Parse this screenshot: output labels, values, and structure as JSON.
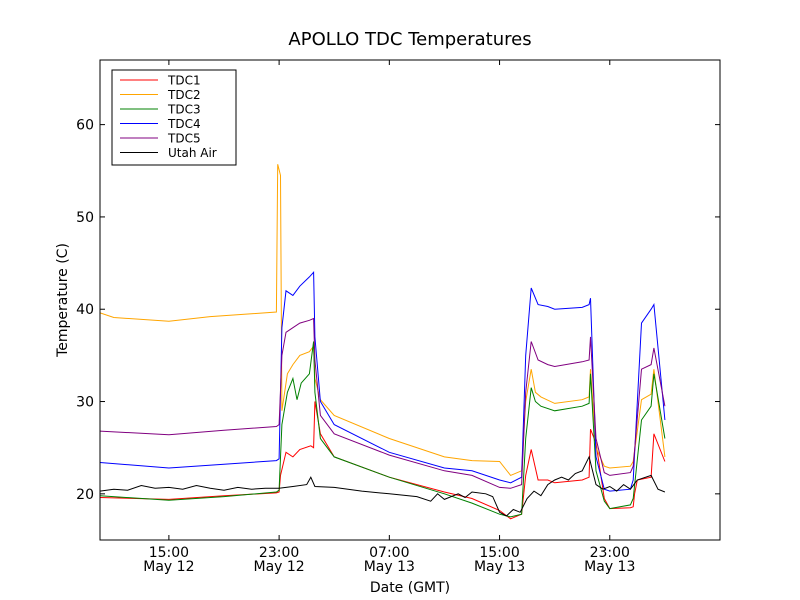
{
  "chart_data": {
    "type": "line",
    "title": "APOLLO TDC Temperatures",
    "xlabel": "Date (GMT)",
    "ylabel": "Temperature (C)",
    "xlim": [
      -5,
      40
    ],
    "ylim": [
      15,
      67
    ],
    "x_unit": "hours since May 12 15:00 GMT",
    "xticks": [
      {
        "x": 0,
        "time": "15:00",
        "date": "May 12"
      },
      {
        "x": 8,
        "time": "23:00",
        "date": "May 12"
      },
      {
        "x": 16,
        "time": "07:00",
        "date": "May 13"
      },
      {
        "x": 24,
        "time": "15:00",
        "date": "May 13"
      },
      {
        "x": 32,
        "time": "23:00",
        "date": "May 13"
      }
    ],
    "yticks": [
      20,
      30,
      40,
      50,
      60
    ],
    "grid": false,
    "legend_position": "top-left",
    "series": [
      {
        "name": "TDC1",
        "color": "#ff0000",
        "points": [
          [
            -5,
            19.6
          ],
          [
            0,
            19.4
          ],
          [
            4,
            19.8
          ],
          [
            7.8,
            20.1
          ],
          [
            8.0,
            20.2
          ],
          [
            8.1,
            22.0
          ],
          [
            8.5,
            24.5
          ],
          [
            9.0,
            24.0
          ],
          [
            9.5,
            24.8
          ],
          [
            10.3,
            25.2
          ],
          [
            10.5,
            25.0
          ],
          [
            10.6,
            30.0
          ],
          [
            11.0,
            26.5
          ],
          [
            12,
            24.0
          ],
          [
            16,
            21.8
          ],
          [
            20,
            20.2
          ],
          [
            22,
            19.5
          ],
          [
            24,
            18.2
          ],
          [
            24.8,
            17.3
          ],
          [
            25.6,
            17.8
          ],
          [
            25.9,
            22.0
          ],
          [
            26.3,
            24.8
          ],
          [
            26.8,
            21.5
          ],
          [
            27.5,
            21.5
          ],
          [
            28,
            21.2
          ],
          [
            30,
            21.5
          ],
          [
            30.5,
            21.8
          ],
          [
            30.6,
            27.0
          ],
          [
            31,
            25.5
          ],
          [
            31.6,
            19.5
          ],
          [
            32,
            18.4
          ],
          [
            33.5,
            18.5
          ],
          [
            33.7,
            18.6
          ],
          [
            33.8,
            20.0
          ],
          [
            34,
            21.5
          ],
          [
            35,
            21.8
          ],
          [
            35.2,
            26.5
          ],
          [
            36,
            23.5
          ]
        ]
      },
      {
        "name": "TDC2",
        "color": "#ffa500",
        "points": [
          [
            -5,
            39.6
          ],
          [
            -4,
            39.1
          ],
          [
            0,
            38.7
          ],
          [
            3,
            39.2
          ],
          [
            6,
            39.5
          ],
          [
            7.8,
            39.7
          ],
          [
            7.9,
            55.7
          ],
          [
            8.1,
            54.5
          ],
          [
            8.2,
            29.0
          ],
          [
            8.6,
            33.0
          ],
          [
            9.0,
            34.0
          ],
          [
            9.5,
            35.0
          ],
          [
            10.2,
            35.4
          ],
          [
            10.5,
            36.0
          ],
          [
            10.6,
            32.5
          ],
          [
            11.0,
            30.2
          ],
          [
            12,
            28.5
          ],
          [
            16,
            26.0
          ],
          [
            20,
            24.0
          ],
          [
            22,
            23.6
          ],
          [
            24,
            23.5
          ],
          [
            24.8,
            22.0
          ],
          [
            25.6,
            22.5
          ],
          [
            25.9,
            30.0
          ],
          [
            26.3,
            33.5
          ],
          [
            26.6,
            31.0
          ],
          [
            27.0,
            30.5
          ],
          [
            28,
            29.8
          ],
          [
            30,
            30.2
          ],
          [
            30.5,
            30.5
          ],
          [
            30.6,
            33.5
          ],
          [
            31,
            25.0
          ],
          [
            31.6,
            23.0
          ],
          [
            32,
            22.8
          ],
          [
            33.5,
            23.0
          ],
          [
            33.7,
            23.5
          ],
          [
            34.3,
            30.2
          ],
          [
            35,
            30.8
          ],
          [
            35.2,
            33.5
          ],
          [
            36,
            24.0
          ]
        ]
      },
      {
        "name": "TDC3",
        "color": "#008000",
        "points": [
          [
            -5,
            19.8
          ],
          [
            0,
            19.3
          ],
          [
            4,
            19.7
          ],
          [
            7.8,
            20.2
          ],
          [
            8.0,
            20.4
          ],
          [
            8.2,
            27.5
          ],
          [
            8.6,
            31.0
          ],
          [
            9.0,
            32.5
          ],
          [
            9.3,
            30.2
          ],
          [
            9.6,
            32.0
          ],
          [
            10.2,
            33.0
          ],
          [
            10.5,
            36.5
          ],
          [
            10.6,
            31.0
          ],
          [
            11.0,
            26.0
          ],
          [
            12,
            24.0
          ],
          [
            16,
            21.8
          ],
          [
            20,
            20.0
          ],
          [
            22,
            19.0
          ],
          [
            24,
            17.8
          ],
          [
            24.8,
            17.5
          ],
          [
            25.6,
            17.8
          ],
          [
            25.9,
            26.0
          ],
          [
            26.3,
            31.5
          ],
          [
            26.6,
            30.0
          ],
          [
            27.0,
            29.5
          ],
          [
            28,
            29.0
          ],
          [
            30,
            29.5
          ],
          [
            30.5,
            29.8
          ],
          [
            30.6,
            33.0
          ],
          [
            31,
            22.5
          ],
          [
            31.6,
            19.2
          ],
          [
            32,
            18.4
          ],
          [
            33.5,
            18.8
          ],
          [
            33.7,
            19.5
          ],
          [
            34.3,
            28.0
          ],
          [
            35,
            29.5
          ],
          [
            35.2,
            33.0
          ],
          [
            36,
            26.0
          ]
        ]
      },
      {
        "name": "TDC4",
        "color": "#0000ff",
        "points": [
          [
            -5,
            23.4
          ],
          [
            0,
            22.8
          ],
          [
            4,
            23.2
          ],
          [
            7.8,
            23.6
          ],
          [
            8.0,
            23.8
          ],
          [
            8.2,
            38.0
          ],
          [
            8.5,
            42.0
          ],
          [
            9.0,
            41.5
          ],
          [
            9.5,
            42.5
          ],
          [
            10.2,
            43.5
          ],
          [
            10.5,
            44.0
          ],
          [
            10.6,
            37.0
          ],
          [
            11.0,
            30.0
          ],
          [
            12,
            27.5
          ],
          [
            16,
            24.5
          ],
          [
            20,
            22.8
          ],
          [
            22,
            22.5
          ],
          [
            24,
            21.5
          ],
          [
            24.8,
            21.2
          ],
          [
            25.6,
            21.8
          ],
          [
            25.9,
            35.0
          ],
          [
            26.3,
            42.3
          ],
          [
            26.8,
            40.5
          ],
          [
            27.5,
            40.3
          ],
          [
            28,
            40.0
          ],
          [
            30,
            40.2
          ],
          [
            30.5,
            40.5
          ],
          [
            30.6,
            41.2
          ],
          [
            31,
            24.0
          ],
          [
            31.6,
            20.5
          ],
          [
            32,
            20.3
          ],
          [
            33.5,
            20.5
          ],
          [
            33.7,
            21.5
          ],
          [
            34.3,
            38.5
          ],
          [
            35,
            40.0
          ],
          [
            35.2,
            40.5
          ],
          [
            36,
            28.0
          ]
        ]
      },
      {
        "name": "TDC5",
        "color": "#800080",
        "points": [
          [
            -5,
            26.8
          ],
          [
            0,
            26.4
          ],
          [
            4,
            26.9
          ],
          [
            7.8,
            27.3
          ],
          [
            8.0,
            27.5
          ],
          [
            8.2,
            35.0
          ],
          [
            8.5,
            37.5
          ],
          [
            9.0,
            38.0
          ],
          [
            9.5,
            38.5
          ],
          [
            10.2,
            38.8
          ],
          [
            10.5,
            39.0
          ],
          [
            10.6,
            34.5
          ],
          [
            11.0,
            28.5
          ],
          [
            12,
            26.5
          ],
          [
            16,
            24.2
          ],
          [
            20,
            22.5
          ],
          [
            22,
            22.0
          ],
          [
            24,
            20.7
          ],
          [
            24.8,
            20.6
          ],
          [
            25.6,
            21.0
          ],
          [
            25.9,
            31.0
          ],
          [
            26.3,
            36.5
          ],
          [
            26.8,
            34.5
          ],
          [
            27.5,
            34.0
          ],
          [
            28,
            33.8
          ],
          [
            30,
            34.3
          ],
          [
            30.5,
            34.5
          ],
          [
            30.6,
            37.0
          ],
          [
            31,
            26.0
          ],
          [
            31.6,
            22.3
          ],
          [
            32,
            22.0
          ],
          [
            33.5,
            22.3
          ],
          [
            33.7,
            23.0
          ],
          [
            34.3,
            33.5
          ],
          [
            35,
            34.0
          ],
          [
            35.2,
            35.8
          ],
          [
            36,
            29.5
          ]
        ]
      },
      {
        "name": "Utah Air",
        "color": "#000000",
        "points": [
          [
            -5,
            20.3
          ],
          [
            -4,
            20.5
          ],
          [
            -3,
            20.4
          ],
          [
            -2,
            20.9
          ],
          [
            -1,
            20.6
          ],
          [
            0,
            20.7
          ],
          [
            1,
            20.5
          ],
          [
            2,
            20.9
          ],
          [
            3,
            20.6
          ],
          [
            4,
            20.4
          ],
          [
            5,
            20.7
          ],
          [
            6,
            20.5
          ],
          [
            7,
            20.6
          ],
          [
            8,
            20.6
          ],
          [
            9,
            20.8
          ],
          [
            10,
            21.0
          ],
          [
            10.3,
            21.8
          ],
          [
            10.6,
            20.8
          ],
          [
            12,
            20.7
          ],
          [
            14,
            20.3
          ],
          [
            16,
            20.0
          ],
          [
            18,
            19.7
          ],
          [
            19,
            19.2
          ],
          [
            19.5,
            20.0
          ],
          [
            20,
            19.4
          ],
          [
            21,
            20.0
          ],
          [
            21.5,
            19.6
          ],
          [
            22,
            20.2
          ],
          [
            23,
            20.0
          ],
          [
            23.5,
            19.7
          ],
          [
            24,
            18.0
          ],
          [
            24.5,
            17.6
          ],
          [
            25,
            18.3
          ],
          [
            25.5,
            18.0
          ],
          [
            26,
            19.5
          ],
          [
            26.5,
            20.3
          ],
          [
            27,
            19.8
          ],
          [
            27.5,
            21.0
          ],
          [
            28,
            21.5
          ],
          [
            28.5,
            21.8
          ],
          [
            29,
            21.5
          ],
          [
            29.5,
            22.2
          ],
          [
            30,
            22.5
          ],
          [
            30.5,
            24.0
          ],
          [
            31,
            21.0
          ],
          [
            31.5,
            20.5
          ],
          [
            32,
            20.8
          ],
          [
            32.5,
            20.3
          ],
          [
            33,
            21.0
          ],
          [
            33.5,
            20.5
          ],
          [
            34,
            21.5
          ],
          [
            35,
            22.0
          ],
          [
            35.5,
            20.5
          ],
          [
            36,
            20.2
          ]
        ]
      }
    ]
  }
}
